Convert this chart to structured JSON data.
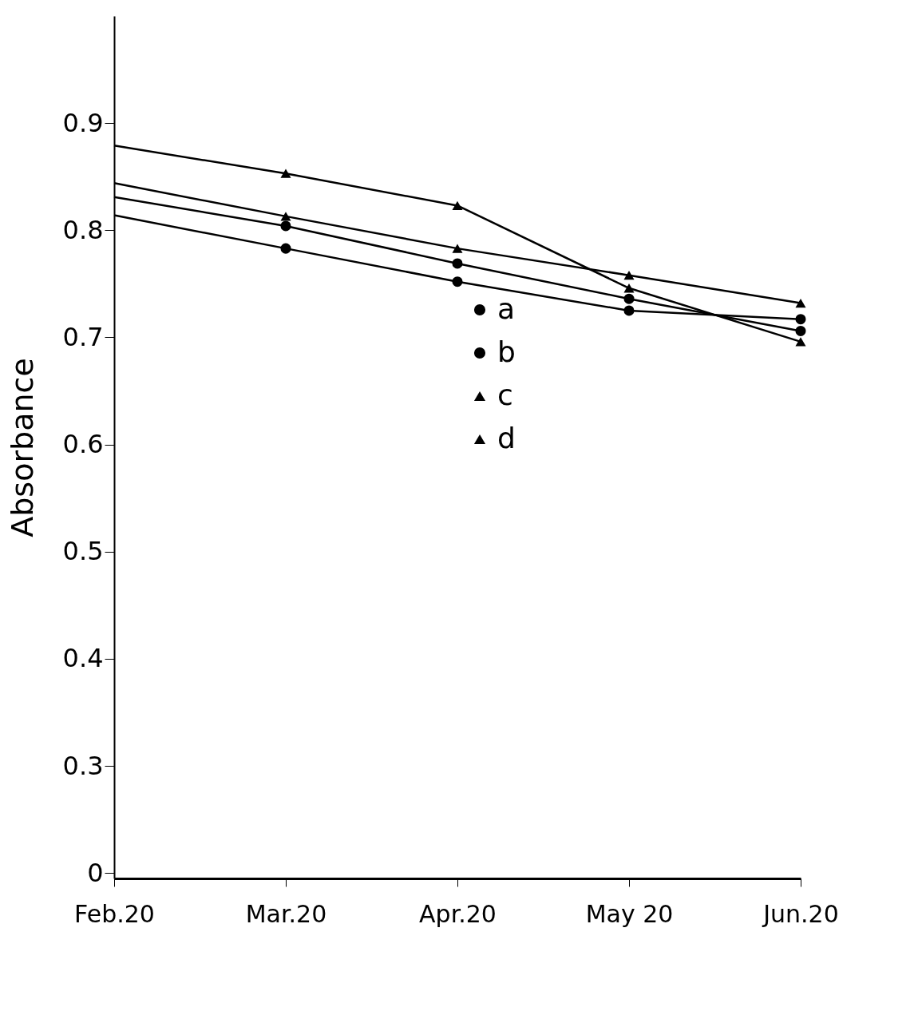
{
  "chart_data": {
    "type": "line",
    "ylabel": "Absorbance",
    "categories": [
      "Feb.20",
      "Mar.20",
      "Apr.20",
      "May 20",
      "Jun.20"
    ],
    "ylim": [
      0.195,
      1.0
    ],
    "yticks": [
      {
        "value": 0.2,
        "label": "0"
      },
      0.3,
      0.4,
      0.5,
      0.6,
      0.7,
      0.8,
      0.9
    ],
    "grid": false,
    "legend": "center",
    "line_style": "solid",
    "series": [
      {
        "name": "a",
        "color": "#000000",
        "marker": "circle",
        "values": [
          0.814,
          0.783,
          0.752,
          0.725,
          0.717
        ]
      },
      {
        "name": "b",
        "color": "#000000",
        "marker": "circle",
        "values": [
          0.831,
          0.804,
          0.769,
          0.736,
          0.706
        ]
      },
      {
        "name": "c",
        "color": "#000000",
        "marker": "triangle",
        "values": [
          0.844,
          0.813,
          0.783,
          0.758,
          0.732
        ]
      },
      {
        "name": "d",
        "color": "#000000",
        "marker": "triangle",
        "values": [
          0.879,
          0.853,
          0.823,
          0.746,
          0.696
        ]
      }
    ]
  }
}
